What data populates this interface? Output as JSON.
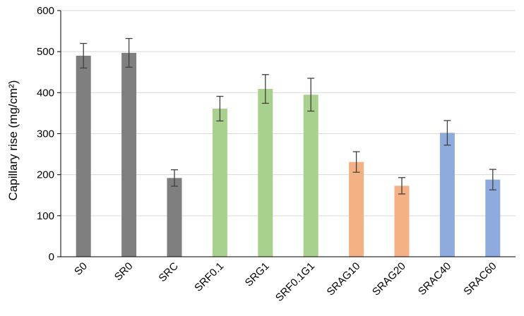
{
  "chart_data": {
    "type": "bar",
    "title": "",
    "xlabel": "",
    "ylabel": "Capillary rise (mg/cm²)",
    "ylim": [
      0,
      600
    ],
    "yticks": [
      0,
      100,
      200,
      300,
      400,
      500,
      600
    ],
    "grid": true,
    "categories": [
      "S0",
      "SR0",
      "SRC",
      "SRF0.1",
      "SRG1",
      "SRF0.1G1",
      "SRAG10",
      "SRAG20",
      "SRAC40",
      "SRAC60"
    ],
    "values": [
      490,
      497,
      192,
      361,
      409,
      395,
      231,
      173,
      302,
      188
    ],
    "errors": [
      30,
      35,
      20,
      30,
      35,
      40,
      25,
      20,
      30,
      25
    ],
    "bar_colors": [
      "#7f7f7f",
      "#7f7f7f",
      "#7f7f7f",
      "#a9d18e",
      "#a9d18e",
      "#a9d18e",
      "#f4b183",
      "#f4b183",
      "#8faadc",
      "#8faadc"
    ],
    "colors": {
      "grid": "#d9d9d9",
      "axis": "#000000",
      "error_bar": "#404040"
    }
  }
}
